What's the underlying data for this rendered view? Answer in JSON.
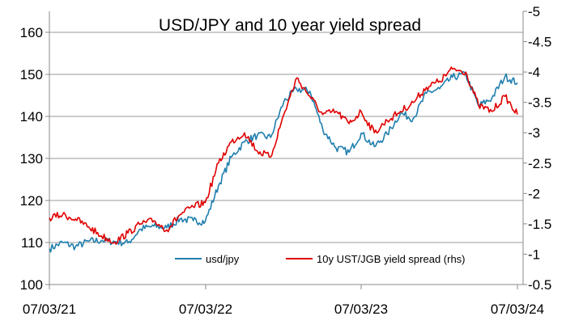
{
  "chart_data": {
    "type": "line",
    "title": "USD/JPY and 10 year yield spread",
    "xlabel": "",
    "ylabel": "",
    "x_tick_labels": [
      "07/03/21",
      "07/03/22",
      "07/03/23",
      "07/03/24"
    ],
    "x_range": [
      "07/03/21",
      "07/03/24"
    ],
    "y_left": {
      "ylim": [
        100,
        165
      ],
      "ticks": [
        "100",
        "110",
        "120",
        "130",
        "140",
        "150",
        "160"
      ]
    },
    "y_right": {
      "ylim": [
        -0.5,
        -5
      ],
      "reversed": true,
      "ticks": [
        "-0.5",
        "-1",
        "-1.5",
        "-2",
        "-2.5",
        "-3",
        "-3.5",
        "-4",
        "-4.5",
        "-5"
      ]
    },
    "grid": "horizontal",
    "legend_placement": "bottom-right, inside plot",
    "series": [
      {
        "name": "usd/jpy",
        "axis": "left",
        "color": "#1f7fae",
        "x": [
          "07/03/21",
          "07/04/21",
          "07/05/21",
          "07/06/21",
          "07/07/21",
          "07/08/21",
          "07/09/21",
          "07/10/21",
          "07/11/21",
          "07/12/21",
          "07/01/22",
          "07/02/22",
          "07/03/22",
          "07/04/22",
          "07/05/22",
          "07/06/22",
          "07/07/22",
          "07/08/22",
          "07/09/22",
          "07/10/22",
          "07/11/22",
          "07/12/22",
          "07/01/23",
          "07/02/23",
          "07/03/23",
          "07/04/23",
          "07/05/23",
          "07/06/23",
          "07/07/23",
          "07/08/23",
          "07/09/23",
          "07/10/23",
          "07/11/23",
          "07/12/23",
          "07/01/24",
          "07/02/24",
          "07/03/24"
        ],
        "values": [
          108.5,
          110,
          109,
          110.3,
          110.5,
          110.2,
          109.9,
          113.2,
          113.9,
          113.5,
          115.6,
          115.2,
          115.0,
          123.5,
          130.3,
          133.9,
          135.5,
          135.0,
          143.5,
          146.5,
          146.0,
          137.0,
          132.5,
          131.5,
          136.0,
          132.8,
          135.8,
          140.7,
          139.5,
          145.5,
          146.6,
          149.3,
          150.0,
          142.5,
          144.3,
          149.5,
          148.0
        ]
      },
      {
        "name": "10y UST/JGB yield spread (rhs)",
        "axis": "right",
        "color": "#e00000",
        "x": [
          "07/03/21",
          "07/04/21",
          "07/05/21",
          "07/06/21",
          "07/07/21",
          "07/08/21",
          "07/09/21",
          "07/10/21",
          "07/11/21",
          "07/12/21",
          "07/01/22",
          "07/02/22",
          "07/03/22",
          "07/04/22",
          "07/05/22",
          "07/06/22",
          "07/07/22",
          "07/08/22",
          "07/09/22",
          "07/10/22",
          "07/11/22",
          "07/12/22",
          "07/01/23",
          "07/02/23",
          "07/03/23",
          "07/04/23",
          "07/05/23",
          "07/06/23",
          "07/07/23",
          "07/08/23",
          "07/09/23",
          "07/10/23",
          "07/11/23",
          "07/12/23",
          "07/01/24",
          "07/02/24",
          "07/03/24"
        ],
        "values": [
          -1.6,
          -1.65,
          -1.58,
          -1.45,
          -1.3,
          -1.2,
          -1.35,
          -1.5,
          -1.55,
          -1.4,
          -1.65,
          -1.78,
          -1.85,
          -2.5,
          -2.85,
          -3.0,
          -2.7,
          -2.6,
          -3.3,
          -3.9,
          -3.6,
          -3.3,
          -3.35,
          -3.15,
          -3.35,
          -3.0,
          -3.2,
          -3.35,
          -3.5,
          -3.75,
          -3.85,
          -4.05,
          -4.0,
          -3.45,
          -3.35,
          -3.6,
          -3.3
        ]
      }
    ]
  }
}
